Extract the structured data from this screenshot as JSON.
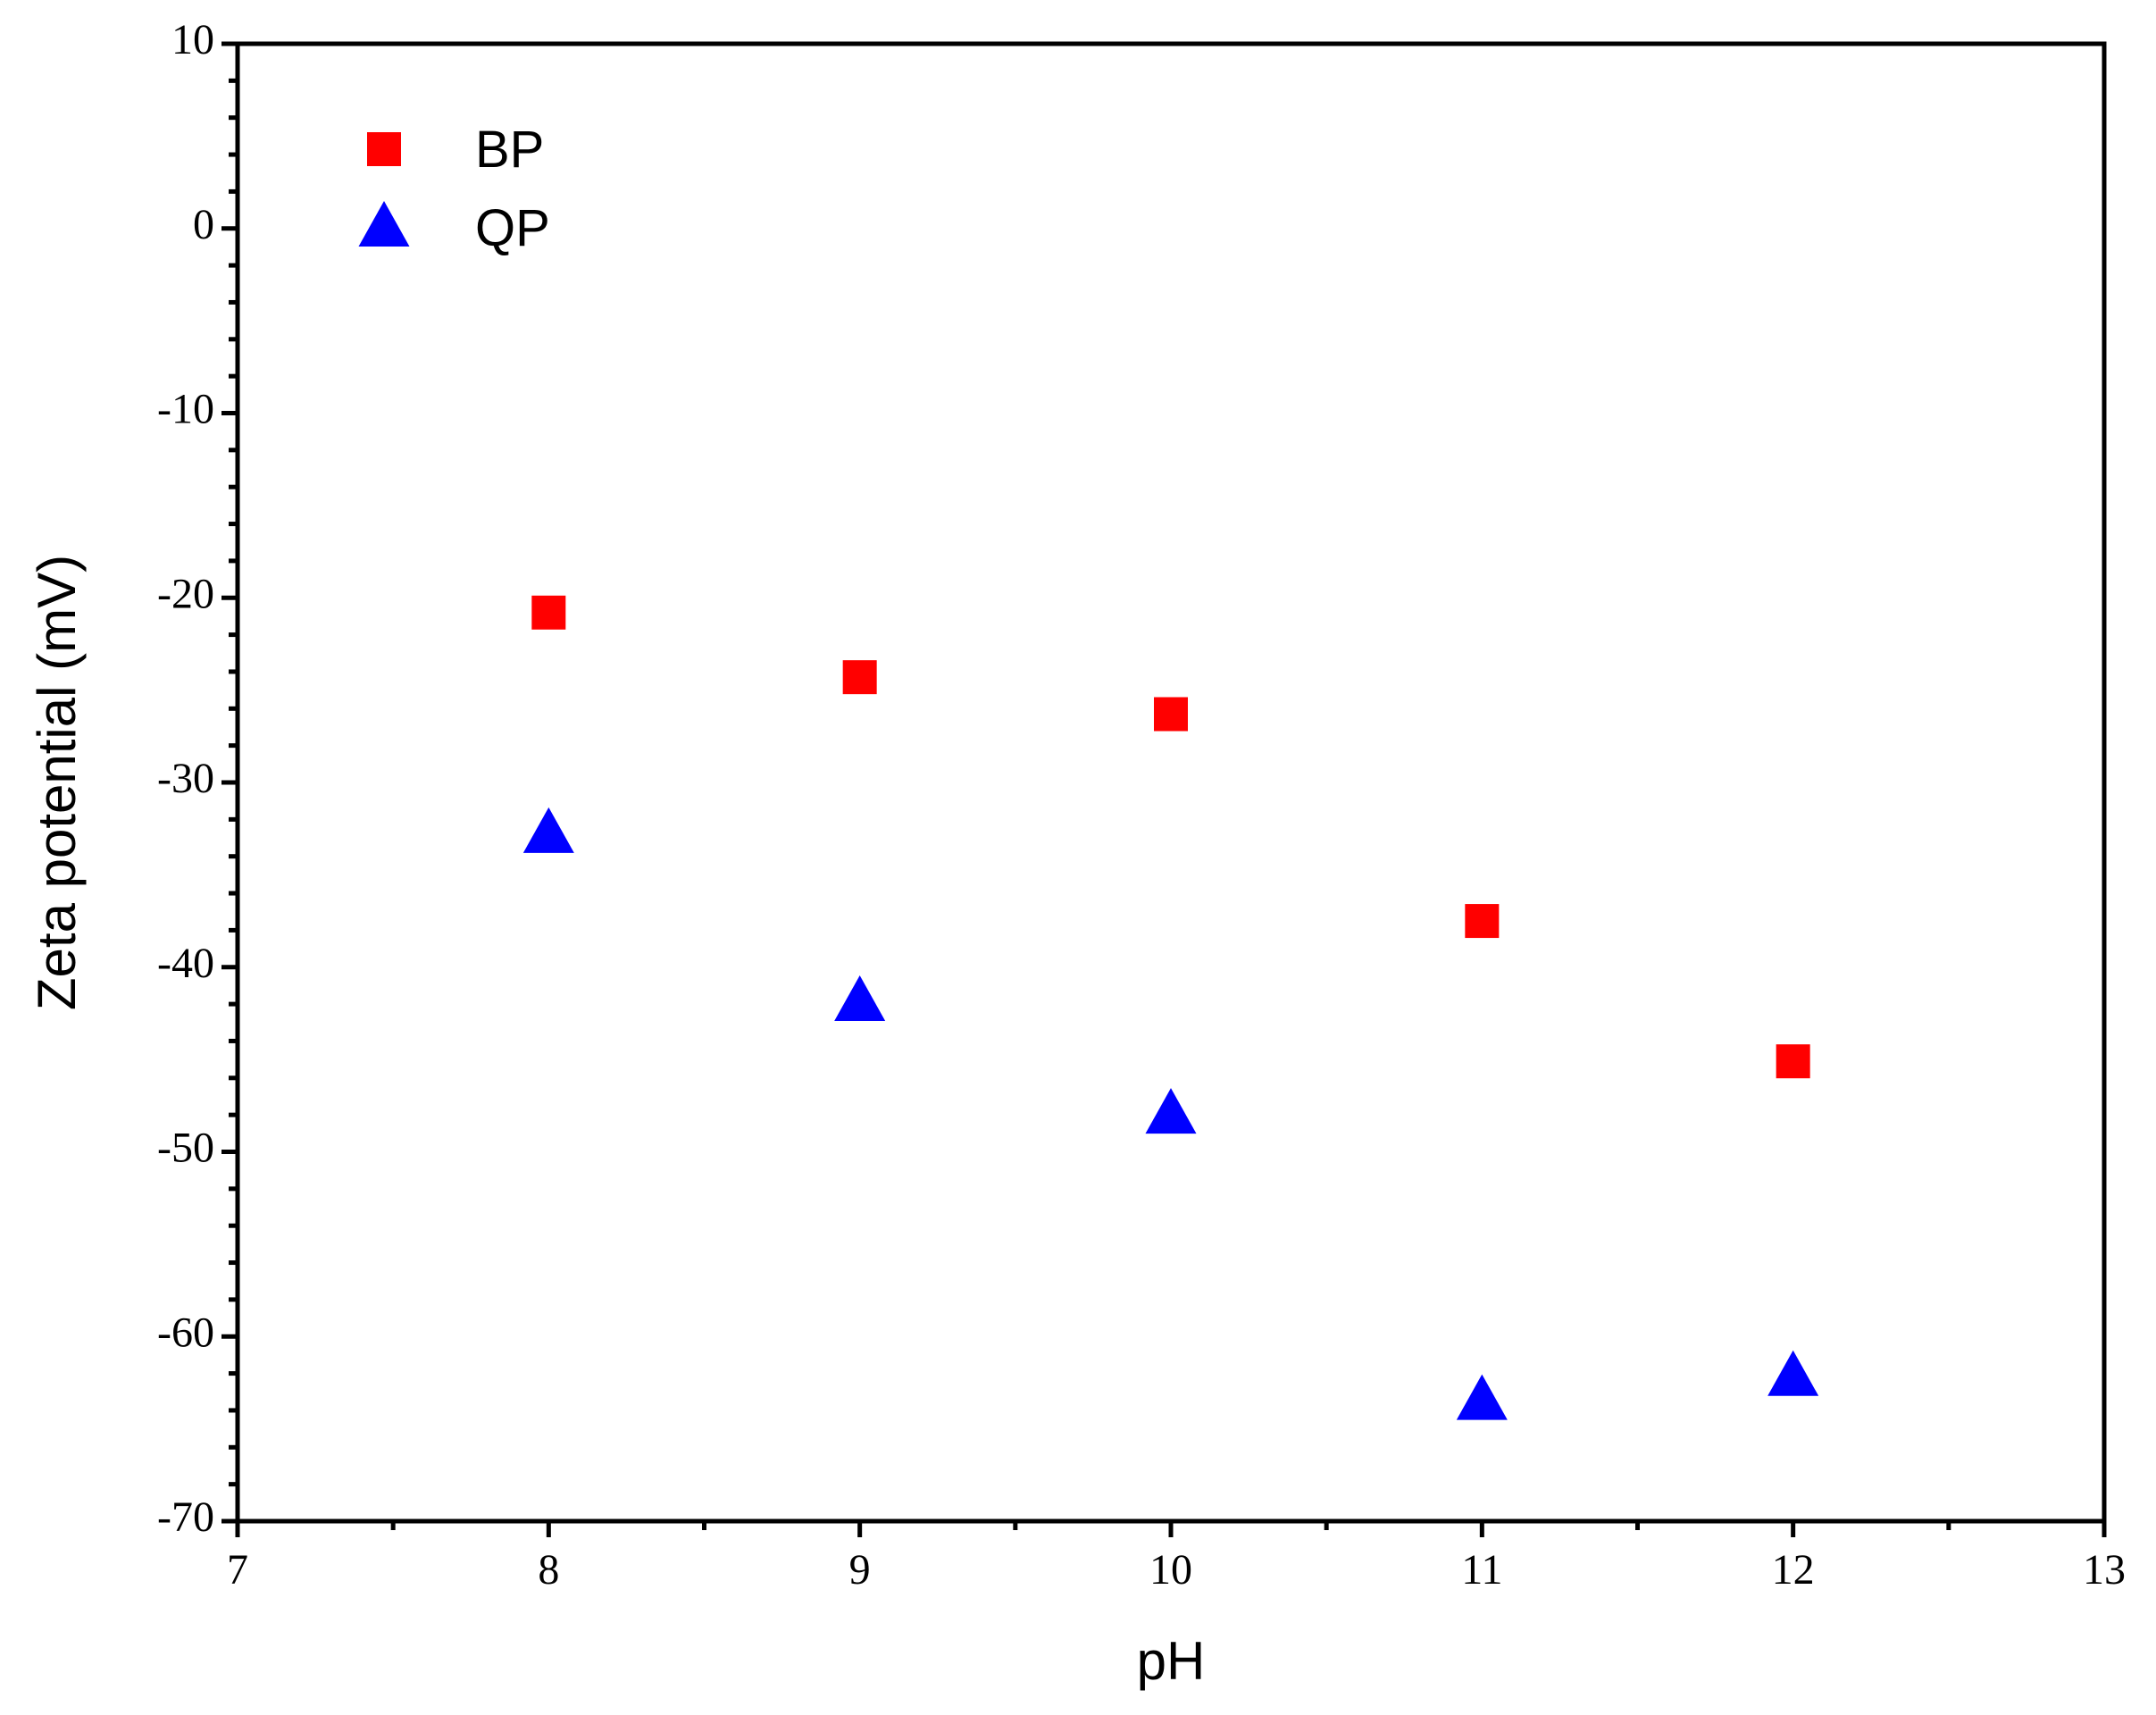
{
  "chart_data": {
    "type": "scatter",
    "xlabel": "pH",
    "ylabel": "Zeta potential (mV)",
    "series": [
      {
        "name": "BP",
        "color": "#ff0000",
        "marker": "square",
        "x": [
          8,
          9,
          10,
          11,
          12
        ],
        "values": [
          -20.8,
          -24.3,
          -26.3,
          -37.5,
          -45.1
        ]
      },
      {
        "name": "QP",
        "color": "#0000ff",
        "marker": "triangle",
        "x": [
          8,
          9,
          10,
          11,
          12
        ],
        "values": [
          -32.8,
          -41.9,
          -48.0,
          -63.5,
          -62.2
        ]
      }
    ],
    "xlim": [
      7,
      13
    ],
    "xticks": [
      7,
      8,
      9,
      10,
      11,
      12,
      13
    ],
    "minor_xticks": [
      7.5,
      8.5,
      9.5,
      10.5,
      11.5,
      12.5
    ],
    "ylim": [
      -70,
      10
    ],
    "yticks": [
      -70,
      -60,
      -50,
      -40,
      -30,
      -20,
      -10,
      0,
      10
    ],
    "minor_yticks": [
      -68,
      -66,
      -64,
      -62,
      -58,
      -56,
      -54,
      -52,
      -48,
      -46,
      -44,
      -42,
      -38,
      -36,
      -34,
      -32,
      -28,
      -26,
      -24,
      -22,
      -18,
      -16,
      -14,
      -12,
      -8,
      -6,
      -4,
      -2,
      2,
      4,
      6,
      8
    ],
    "legend": "upper left",
    "grid": false
  }
}
